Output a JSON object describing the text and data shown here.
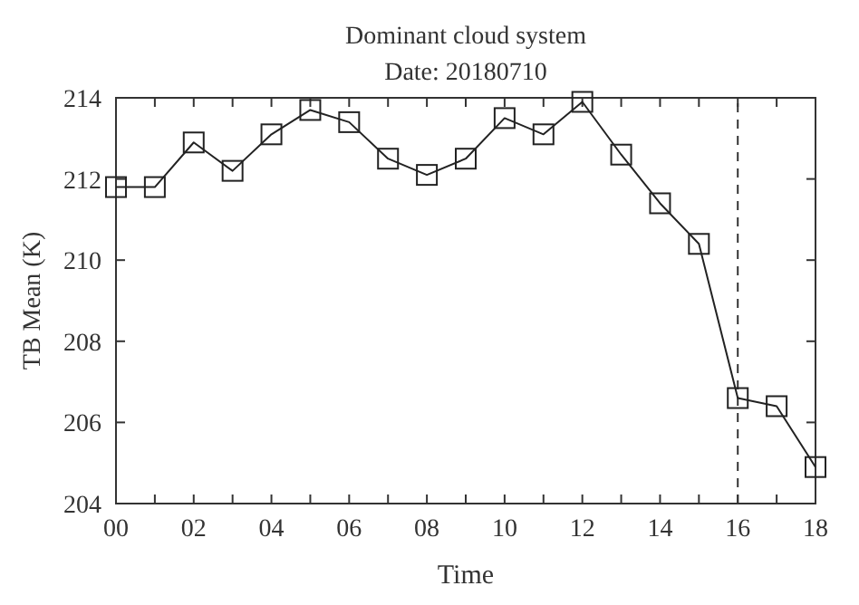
{
  "chart_data": {
    "type": "line",
    "title": "Dominant cloud system",
    "subtitle": "Date: 20180710",
    "xlabel": "Time",
    "ylabel": "TB Mean (K)",
    "x": [
      0,
      1,
      2,
      3,
      4,
      5,
      6,
      7,
      8,
      9,
      10,
      11,
      12,
      13,
      14,
      15,
      16,
      17,
      18
    ],
    "series": [
      {
        "color": "#222222",
        "values": [
          211.8,
          211.8,
          212.9,
          212.2,
          213.1,
          213.7,
          213.4,
          212.5,
          212.1,
          212.5,
          213.5,
          213.1,
          213.9,
          212.6,
          211.4,
          210.4,
          206.6,
          206.4,
          204.9
        ]
      }
    ],
    "xlim": [
      0,
      18
    ],
    "ylim": [
      204,
      214
    ],
    "xticks": [
      {
        "value": 0,
        "label": "00"
      },
      {
        "value": 1,
        "label": null
      },
      {
        "value": 2,
        "label": "02"
      },
      {
        "value": 3,
        "label": null
      },
      {
        "value": 4,
        "label": "04"
      },
      {
        "value": 5,
        "label": null
      },
      {
        "value": 6,
        "label": "06"
      },
      {
        "value": 7,
        "label": null
      },
      {
        "value": 8,
        "label": "08"
      },
      {
        "value": 9,
        "label": null
      },
      {
        "value": 10,
        "label": "10"
      },
      {
        "value": 11,
        "label": null
      },
      {
        "value": 12,
        "label": "12"
      },
      {
        "value": 13,
        "label": null
      },
      {
        "value": 14,
        "label": "14"
      },
      {
        "value": 15,
        "label": null
      },
      {
        "value": 16,
        "label": "16"
      },
      {
        "value": 17,
        "label": null
      },
      {
        "value": 18,
        "label": "18"
      }
    ],
    "yticks": [
      204,
      206,
      208,
      210,
      212,
      214
    ],
    "ref_lines": [
      {
        "axis": "x",
        "value": 16,
        "label": null,
        "color": "#333333",
        "line_style": "dashed"
      }
    ],
    "marker": "square",
    "line_style": "solid",
    "grid": false
  }
}
